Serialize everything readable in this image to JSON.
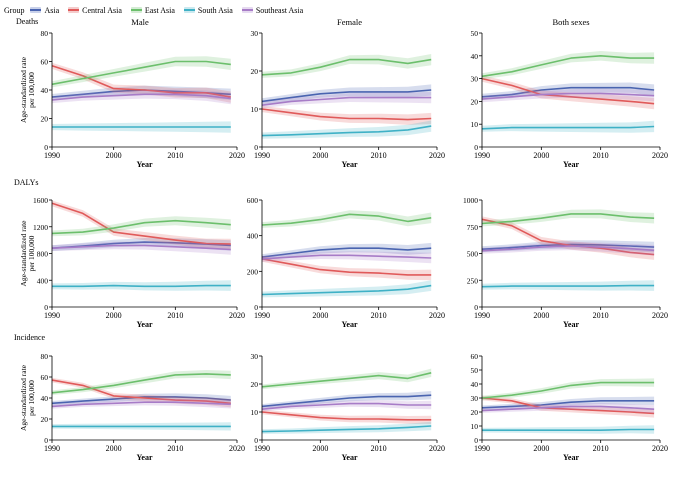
{
  "legend": {
    "title": "Group",
    "items": [
      {
        "name": "Asia",
        "color": "#4a64b0"
      },
      {
        "name": "Central Asia",
        "color": "#e05a5a"
      },
      {
        "name": "East Asia",
        "color": "#6cbf6c"
      },
      {
        "name": "South Asia",
        "color": "#3fb1c6"
      },
      {
        "name": "Southeast Asia",
        "color": "#a77cc7"
      }
    ]
  },
  "rows": [
    {
      "label": "Deaths"
    },
    {
      "label": "DALYs"
    },
    {
      "label": "Incidence"
    }
  ],
  "column_titles": [
    "Male",
    "Female",
    "Both sexes"
  ],
  "y_axis_label_line1": "Age-standardized rate",
  "y_axis_label_line2": "per 100,000",
  "x_axis_label": "Year",
  "chart_data": [
    {
      "type": "line",
      "title": "Male",
      "row": "Deaths",
      "xlabel": "Year",
      "ylabel": "Age-standardized rate per 100,000",
      "xlim": [
        1990,
        2020
      ],
      "ylim": [
        0,
        80
      ],
      "yticks": [
        0,
        20,
        40,
        60,
        80
      ],
      "xticks": [
        1990,
        2000,
        2010,
        2020
      ],
      "x": [
        1990,
        1995,
        2000,
        2005,
        2010,
        2015,
        2019
      ],
      "series": [
        {
          "name": "Asia",
          "values": [
            35,
            37,
            39,
            40,
            39,
            38,
            37
          ]
        },
        {
          "name": "Central Asia",
          "values": [
            57,
            50,
            41,
            40,
            38,
            38,
            35
          ]
        },
        {
          "name": "East Asia",
          "values": [
            44,
            48,
            52,
            56,
            60,
            60,
            58
          ]
        },
        {
          "name": "South Asia",
          "values": [
            14,
            14,
            14,
            14,
            14,
            14,
            14
          ]
        },
        {
          "name": "Southeast Asia",
          "values": [
            33,
            35,
            36,
            37,
            37,
            36,
            34
          ]
        }
      ]
    },
    {
      "type": "line",
      "title": "Female",
      "row": "Deaths",
      "xlabel": "Year",
      "ylabel": "Age-standardized rate per 100,000",
      "xlim": [
        1990,
        2020
      ],
      "ylim": [
        0,
        30
      ],
      "yticks": [
        0,
        10,
        20,
        30
      ],
      "xticks": [
        1990,
        2000,
        2010,
        2020
      ],
      "x": [
        1990,
        1995,
        2000,
        2005,
        2010,
        2015,
        2019
      ],
      "series": [
        {
          "name": "Asia",
          "values": [
            12,
            13,
            14,
            14.5,
            14.5,
            14.5,
            15
          ]
        },
        {
          "name": "Central Asia",
          "values": [
            10,
            9,
            8,
            7.5,
            7.5,
            7.2,
            7.5
          ]
        },
        {
          "name": "East Asia",
          "values": [
            19,
            19.5,
            21,
            23,
            23,
            22,
            23
          ]
        },
        {
          "name": "South Asia",
          "values": [
            3,
            3.2,
            3.5,
            3.8,
            4,
            4.5,
            5.5
          ]
        },
        {
          "name": "Southeast Asia",
          "values": [
            11,
            12,
            12.5,
            13,
            13,
            13,
            13
          ]
        }
      ]
    },
    {
      "type": "line",
      "title": "Both sexes",
      "row": "Deaths",
      "xlabel": "Year",
      "ylabel": "Age-standardized rate per 100,000",
      "xlim": [
        1990,
        2020
      ],
      "ylim": [
        0,
        50
      ],
      "yticks": [
        0,
        10,
        20,
        30,
        40,
        50
      ],
      "xticks": [
        1990,
        2000,
        2010,
        2020
      ],
      "x": [
        1990,
        1995,
        2000,
        2005,
        2010,
        2015,
        2019
      ],
      "series": [
        {
          "name": "Asia",
          "values": [
            22,
            23,
            25,
            26,
            26,
            26,
            25
          ]
        },
        {
          "name": "Central Asia",
          "values": [
            30,
            27,
            23,
            22,
            21,
            20,
            19
          ]
        },
        {
          "name": "East Asia",
          "values": [
            31,
            33,
            36,
            39,
            40,
            39,
            39
          ]
        },
        {
          "name": "South Asia",
          "values": [
            8,
            8.5,
            8.5,
            8.5,
            8.5,
            8.5,
            9
          ]
        },
        {
          "name": "Southeast Asia",
          "values": [
            21,
            22,
            23,
            23.5,
            23.5,
            23,
            22.5
          ]
        }
      ]
    },
    {
      "type": "line",
      "title": "",
      "row": "DALYs",
      "xlabel": "Year",
      "ylabel": "Age-standardized rate per 100,000",
      "xlim": [
        1990,
        2020
      ],
      "ylim": [
        0,
        1600
      ],
      "yticks": [
        0,
        400,
        800,
        1200,
        1600
      ],
      "xticks": [
        1990,
        2000,
        2010,
        2020
      ],
      "x": [
        1990,
        1995,
        2000,
        2005,
        2010,
        2015,
        2019
      ],
      "series": [
        {
          "name": "Asia",
          "values": [
            880,
            910,
            950,
            970,
            960,
            940,
            920
          ]
        },
        {
          "name": "Central Asia",
          "values": [
            1550,
            1400,
            1120,
            1060,
            1000,
            950,
            940
          ]
        },
        {
          "name": "East Asia",
          "values": [
            1100,
            1120,
            1180,
            1260,
            1290,
            1260,
            1230
          ]
        },
        {
          "name": "South Asia",
          "values": [
            310,
            310,
            320,
            310,
            310,
            320,
            320
          ]
        },
        {
          "name": "Southeast Asia",
          "values": [
            880,
            900,
            920,
            920,
            900,
            880,
            860
          ]
        }
      ]
    },
    {
      "type": "line",
      "title": "",
      "row": "DALYs",
      "xlabel": "Year",
      "ylabel": "Age-standardized rate per 100,000",
      "xlim": [
        1990,
        2020
      ],
      "ylim": [
        0,
        600
      ],
      "yticks": [
        0,
        200,
        400,
        600
      ],
      "xticks": [
        1990,
        2000,
        2010,
        2020
      ],
      "x": [
        1990,
        1995,
        2000,
        2005,
        2010,
        2015,
        2019
      ],
      "series": [
        {
          "name": "Asia",
          "values": [
            280,
            300,
            320,
            330,
            330,
            320,
            330
          ]
        },
        {
          "name": "Central Asia",
          "values": [
            270,
            240,
            210,
            195,
            190,
            180,
            180
          ]
        },
        {
          "name": "East Asia",
          "values": [
            460,
            470,
            490,
            520,
            510,
            480,
            500
          ]
        },
        {
          "name": "South Asia",
          "values": [
            70,
            75,
            80,
            85,
            90,
            100,
            120
          ]
        },
        {
          "name": "Southeast Asia",
          "values": [
            270,
            280,
            290,
            290,
            285,
            280,
            275
          ]
        }
      ]
    },
    {
      "type": "line",
      "title": "",
      "row": "DALYs",
      "xlabel": "Year",
      "ylabel": "Age-standardized rate per 100,000",
      "xlim": [
        1990,
        2020
      ],
      "ylim": [
        0,
        1000
      ],
      "yticks": [
        0,
        250,
        500,
        750,
        1000
      ],
      "xticks": [
        1990,
        2000,
        2010,
        2020
      ],
      "x": [
        1990,
        1995,
        2000,
        2005,
        2010,
        2015,
        2019
      ],
      "series": [
        {
          "name": "Asia",
          "values": [
            540,
            555,
            575,
            585,
            580,
            570,
            560
          ]
        },
        {
          "name": "Central Asia",
          "values": [
            820,
            760,
            620,
            575,
            550,
            510,
            490
          ]
        },
        {
          "name": "East Asia",
          "values": [
            780,
            800,
            830,
            870,
            870,
            840,
            830
          ]
        },
        {
          "name": "South Asia",
          "values": [
            190,
            195,
            195,
            195,
            195,
            200,
            200
          ]
        },
        {
          "name": "Southeast Asia",
          "values": [
            525,
            540,
            560,
            570,
            560,
            545,
            530
          ]
        }
      ]
    },
    {
      "type": "line",
      "title": "",
      "row": "Incidence",
      "xlabel": "Year",
      "ylabel": "Age-standardized rate per 100,000",
      "xlim": [
        1990,
        2020
      ],
      "ylim": [
        0,
        80
      ],
      "yticks": [
        0,
        20,
        40,
        60,
        80
      ],
      "xticks": [
        1990,
        2000,
        2010,
        2020
      ],
      "x": [
        1990,
        1995,
        2000,
        2005,
        2010,
        2015,
        2019
      ],
      "series": [
        {
          "name": "Asia",
          "values": [
            35,
            37,
            39,
            41,
            41,
            40,
            38
          ]
        },
        {
          "name": "Central Asia",
          "values": [
            57,
            52,
            42,
            40,
            38,
            37,
            35
          ]
        },
        {
          "name": "East Asia",
          "values": [
            45,
            48,
            52,
            57,
            62,
            63,
            62
          ]
        },
        {
          "name": "South Asia",
          "values": [
            13,
            13,
            13,
            13,
            13,
            13,
            13
          ]
        },
        {
          "name": "Southeast Asia",
          "values": [
            32,
            34,
            35,
            36,
            36,
            35,
            34
          ]
        }
      ]
    },
    {
      "type": "line",
      "title": "",
      "row": "Incidence",
      "xlabel": "Year",
      "ylabel": "Age-standardized rate per 100,000",
      "xlim": [
        1990,
        2020
      ],
      "ylim": [
        0,
        30
      ],
      "yticks": [
        0,
        10,
        20,
        30
      ],
      "xticks": [
        1990,
        2000,
        2010,
        2020
      ],
      "x": [
        1990,
        1995,
        2000,
        2005,
        2010,
        2015,
        2019
      ],
      "series": [
        {
          "name": "Asia",
          "values": [
            12,
            13,
            14,
            15,
            15.5,
            15.5,
            16
          ]
        },
        {
          "name": "Central Asia",
          "values": [
            10,
            9,
            8,
            7.5,
            7.5,
            7.2,
            7.2
          ]
        },
        {
          "name": "East Asia",
          "values": [
            19,
            20,
            21,
            22,
            23,
            22,
            24
          ]
        },
        {
          "name": "South Asia",
          "values": [
            3,
            3.2,
            3.5,
            3.8,
            4,
            4.5,
            5
          ]
        },
        {
          "name": "Southeast Asia",
          "values": [
            11,
            12,
            12.5,
            13,
            13,
            12.5,
            12.5
          ]
        }
      ]
    },
    {
      "type": "line",
      "title": "",
      "row": "Incidence",
      "xlabel": "Year",
      "ylabel": "Age-standardized rate per 100,000",
      "xlim": [
        1990,
        2020
      ],
      "ylim": [
        0,
        60
      ],
      "yticks": [
        0,
        10,
        20,
        30,
        40,
        50,
        60
      ],
      "xticks": [
        1990,
        2000,
        2010,
        2020
      ],
      "x": [
        1990,
        1995,
        2000,
        2005,
        2010,
        2015,
        2019
      ],
      "series": [
        {
          "name": "Asia",
          "values": [
            23,
            24,
            25,
            27,
            28,
            28,
            28
          ]
        },
        {
          "name": "Central Asia",
          "values": [
            30,
            28,
            23,
            22,
            21,
            20,
            19
          ]
        },
        {
          "name": "East Asia",
          "values": [
            30,
            32,
            35,
            39,
            41,
            41,
            41
          ]
        },
        {
          "name": "South Asia",
          "values": [
            7,
            7,
            7,
            7,
            7,
            7.5,
            7.5
          ]
        },
        {
          "name": "Southeast Asia",
          "values": [
            21,
            22,
            23,
            24,
            24,
            23,
            22
          ]
        }
      ]
    }
  ]
}
